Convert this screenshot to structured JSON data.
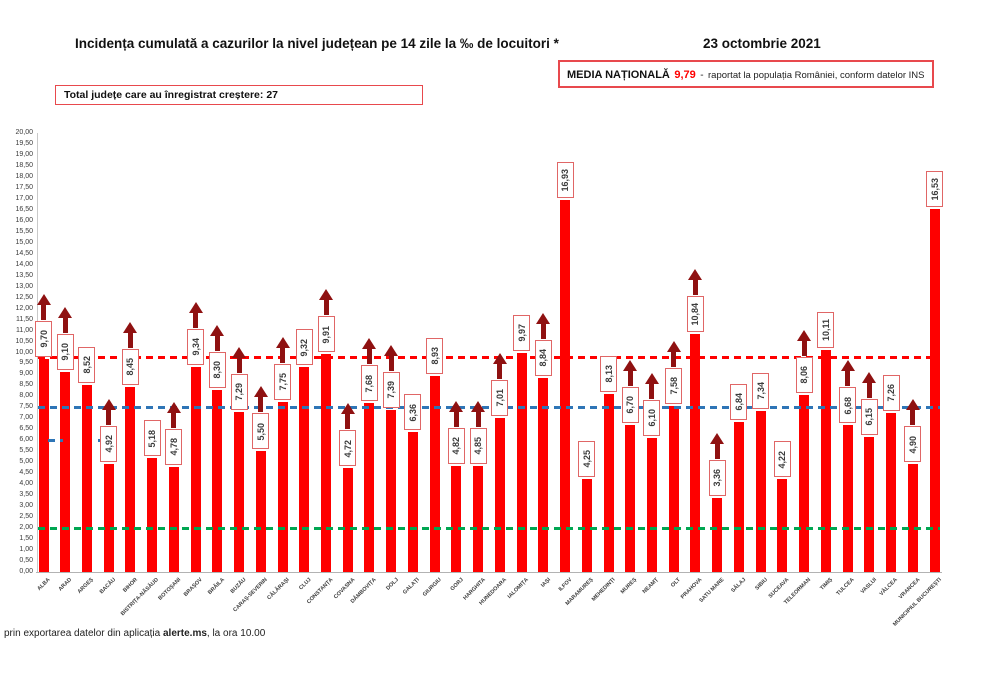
{
  "header": {
    "title": "Incidența cumulată a cazurilor la nivel județean pe 14 zile la ‰ de locuitori *",
    "date": "23 octombrie 2021"
  },
  "national_average_box": {
    "label": "MEDIA NAȚIONALĂ",
    "value": "9,79",
    "separator": "-",
    "note": "raportat la populația României, conform datelor INS",
    "value_color": "#ff0000"
  },
  "growth_box": {
    "label": "Total județe care au înregistrat creștere:",
    "count": "27"
  },
  "footer": {
    "prefix": "prin exportarea datelor din aplicația ",
    "app_name": "alerte.ms",
    "suffix": ", la ora 10.00"
  },
  "chart_data": {
    "type": "bar",
    "title": "Incidența cumulată a cazurilor la nivel județean pe 14 zile la ‰ de locuitori *",
    "xlabel": "",
    "ylabel": "",
    "ylim": [
      0,
      20
    ],
    "ytick_step": 0.5,
    "grid": false,
    "legend": "none",
    "bar_color": "#fe0000",
    "value_label_border_color": "#e06666",
    "increase_marker": "dark-red-up-arrow",
    "increase_marker_color": "#8f1111",
    "categories": [
      "ALBA",
      "ARAD",
      "ARGEȘ",
      "BACĂU",
      "BIHOR",
      "BISTRIȚA-NĂSĂUD",
      "BOTOȘANI",
      "BRAȘOV",
      "BRĂILA",
      "BUZĂU",
      "CARAȘ-SEVERIN",
      "CĂLĂRAȘI",
      "CLUJ",
      "CONSTANȚA",
      "COVASNA",
      "DÂMBOVIȚA",
      "DOLJ",
      "GALAȚI",
      "GIURGIU",
      "GORJ",
      "HARGHITA",
      "HUNEDOARA",
      "IALOMIȚA",
      "IAȘI",
      "ILFOV",
      "MARAMUREȘ",
      "MEHEDINȚI",
      "MUREȘ",
      "NEAMȚ",
      "OLT",
      "PRAHOVA",
      "SATU MARE",
      "SĂLAJ",
      "SIBIU",
      "SUCEAVA",
      "TELEORMAN",
      "TIMIȘ",
      "TULCEA",
      "VASLUI",
      "VÂLCEA",
      "VRANCEA",
      "MUNICIPIUL BUCUREȘTI"
    ],
    "values": [
      9.7,
      9.1,
      8.52,
      4.92,
      8.45,
      5.18,
      4.78,
      9.34,
      8.3,
      7.29,
      5.5,
      7.75,
      9.32,
      9.91,
      4.72,
      7.68,
      7.39,
      6.36,
      8.93,
      4.82,
      4.85,
      7.01,
      9.97,
      8.84,
      16.93,
      4.25,
      8.13,
      6.7,
      6.1,
      7.58,
      10.84,
      3.36,
      6.84,
      7.34,
      4.22,
      8.06,
      10.11,
      6.68,
      6.15,
      7.26,
      4.9,
      16.53
    ],
    "labels": [
      "9,70",
      "9,10",
      "8,52",
      "4,92",
      "8,45",
      "5,18",
      "4,78",
      "9,34",
      "8,30",
      "7,29",
      "5,50",
      "7,75",
      "9,32",
      "9,91",
      "4,72",
      "7,68",
      "7,39",
      "6,36",
      "8,93",
      "4,82",
      "4,85",
      "7,01",
      "9,97",
      "8,84",
      "16,93",
      "4,25",
      "8,13",
      "6,70",
      "6,10",
      "7,58",
      "10,84",
      "3,36",
      "6,84",
      "7,34",
      "4,22",
      "8,06",
      "10,11",
      "6,68",
      "6,15",
      "7,26",
      "4,90",
      "16,53"
    ],
    "increase": [
      true,
      true,
      false,
      true,
      true,
      false,
      true,
      true,
      true,
      true,
      true,
      true,
      false,
      true,
      true,
      true,
      true,
      false,
      false,
      true,
      true,
      true,
      false,
      true,
      false,
      false,
      false,
      true,
      true,
      true,
      true,
      true,
      false,
      false,
      false,
      true,
      false,
      true,
      true,
      false,
      true,
      false
    ],
    "reference_lines": [
      {
        "name": "media-nationala",
        "value": 9.79,
        "color": "#ff0000",
        "style": "dashed"
      },
      {
        "name": "threshold-7-5",
        "value": 7.5,
        "color": "#2e75b6",
        "style": "dashed"
      },
      {
        "name": "threshold-2",
        "value": 2.0,
        "color": "#00a651",
        "style": "dashed"
      },
      {
        "name": "stray-segment-6a",
        "value": 6.0,
        "color": "#2e75b6",
        "style": "dashed",
        "x_start": 0.011,
        "x_end": 0.028
      },
      {
        "name": "stray-segment-6b",
        "value": 6.0,
        "color": "#2e75b6",
        "style": "dashed",
        "x_start": 0.067,
        "x_end": 0.074
      }
    ],
    "yticks": [
      "20,00",
      "19,50",
      "19,00",
      "18,50",
      "18,00",
      "17,50",
      "17,00",
      "16,50",
      "16,00",
      "15,50",
      "15,00",
      "14,50",
      "14,00",
      "13,50",
      "13,00",
      "12,50",
      "12,00",
      "11,50",
      "11,00",
      "10,50",
      "10,00",
      "9,50",
      "9,00",
      "8,50",
      "8,00",
      "7,50",
      "7,00",
      "6,50",
      "6,00",
      "5,50",
      "5,00",
      "4,50",
      "4,00",
      "3,50",
      "3,00",
      "2,50",
      "2,00",
      "1,50",
      "1,00",
      "0,50",
      "0,00"
    ]
  }
}
